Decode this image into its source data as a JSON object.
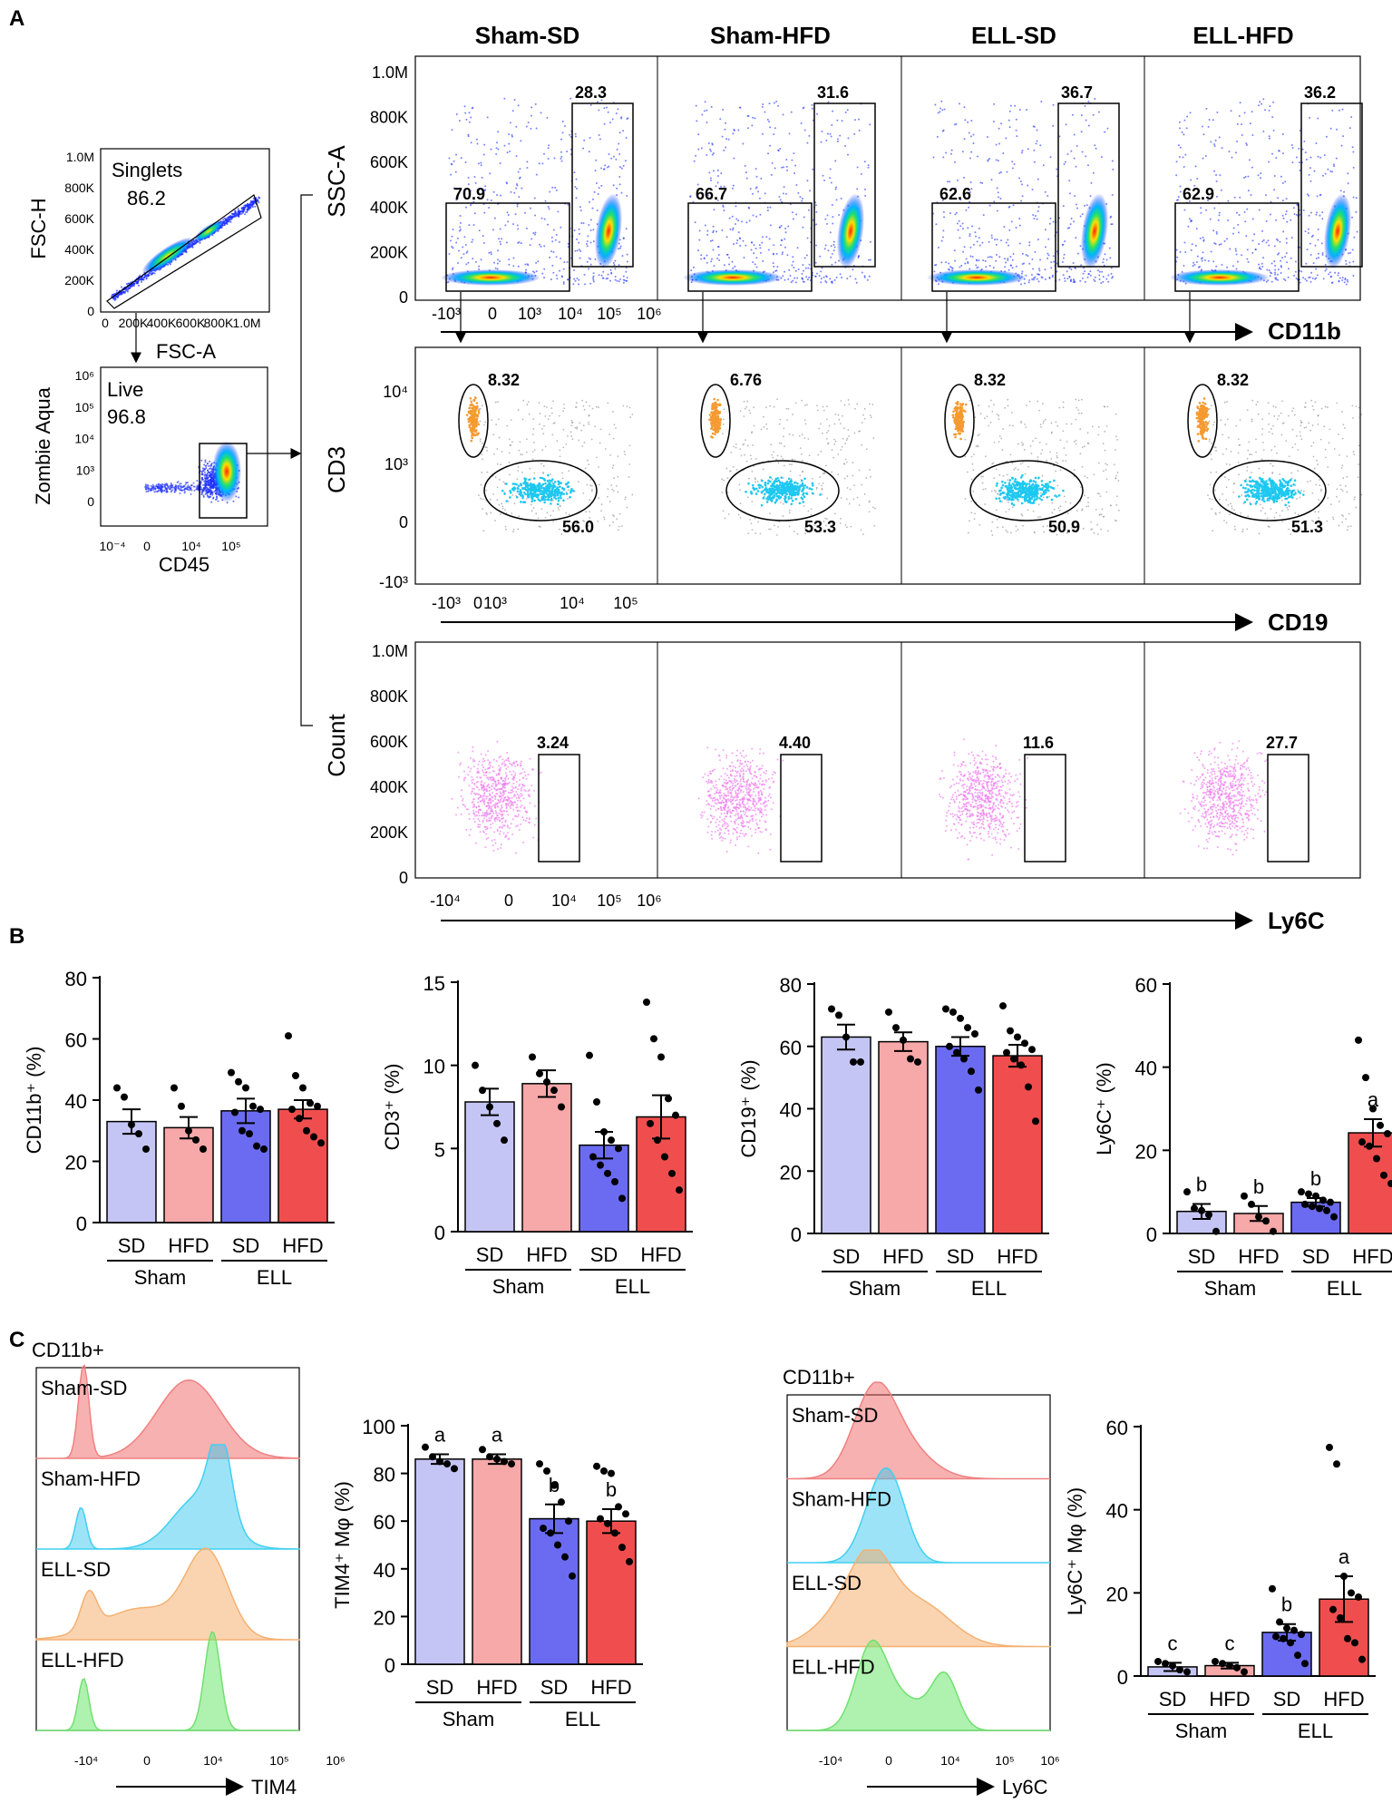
{
  "panels": {
    "A": "A",
    "B": "B",
    "C": "C"
  },
  "gating": {
    "singlets": {
      "name": "Singlets",
      "value": "86.2",
      "ylabel": "FSC-H",
      "xlabel": "FSC-A",
      "yticks": [
        "1.0M",
        "800K",
        "600K",
        "400K",
        "200K",
        "0"
      ],
      "xticks": [
        "0",
        "200K",
        "400K",
        "600K",
        "800K",
        "1.0M"
      ]
    },
    "live": {
      "name": "Live",
      "value": "96.8",
      "ylabel": "Zombie Aqua",
      "xlabel": "CD45",
      "yticks": [
        "10⁶",
        "10⁵",
        "10⁴",
        "10³",
        "0"
      ],
      "xticks": [
        "10⁻⁴",
        "0",
        "10⁴",
        "10⁵"
      ]
    }
  },
  "flow": {
    "groups": [
      "Sham-SD",
      "Sham-HFD",
      "ELL-SD",
      "ELL-HFD"
    ],
    "cd11b": {
      "ylabel": "SSC-A",
      "xlabel": "CD11b",
      "yticks": [
        "1.0M",
        "800K",
        "600K",
        "400K",
        "200K",
        "0"
      ],
      "xticks": [
        "-10³",
        "0",
        "10³",
        "10⁴",
        "10⁵",
        "10⁶"
      ],
      "neg": [
        "70.9",
        "66.7",
        "62.6",
        "62.9"
      ],
      "pos": [
        "28.3",
        "31.6",
        "36.7",
        "36.2"
      ]
    },
    "cd19": {
      "ylabel": "CD3",
      "xlabel": "CD19",
      "yticks": [
        "10⁴",
        "10³",
        "0",
        "-10³"
      ],
      "xticks": [
        "-10³",
        "0",
        "10³",
        "10⁴",
        "10⁵"
      ],
      "cd3": [
        "8.32",
        "6.76",
        "8.32",
        "8.32"
      ],
      "cd19": [
        "56.0",
        "53.3",
        "50.9",
        "51.3"
      ]
    },
    "ly6c": {
      "ylabel": "Count",
      "xlabel": "Ly6C",
      "yticks": [
        "1.0M",
        "800K",
        "600K",
        "400K",
        "200K",
        "0"
      ],
      "xticks": [
        "-10⁴",
        "0",
        "10⁴",
        "10⁵",
        "10⁶"
      ],
      "values": [
        "3.24",
        "4.40",
        "11.6",
        "27.7"
      ]
    }
  },
  "bar_labels": {
    "sd": "SD",
    "hfd": "HFD",
    "sham": "Sham",
    "ell": "ELL"
  },
  "colors": {
    "sham_sd": "#c5c5f5",
    "sham_hfd": "#f7a8a8",
    "ell_sd": "#6b6bf2",
    "ell_hfd": "#f04e4e"
  },
  "chart_data": [
    {
      "type": "bar",
      "id": "cd11b",
      "ylabel": "CD11b⁺ (%)",
      "ylim": [
        0,
        80
      ],
      "yticks": [
        "0",
        "20",
        "40",
        "60",
        "80"
      ],
      "categories": [
        "Sham SD",
        "Sham HFD",
        "ELL SD",
        "ELL HFD"
      ],
      "values": [
        33,
        31,
        36.5,
        37
      ],
      "sem": [
        4,
        3.5,
        4,
        3
      ],
      "points": [
        [
          44,
          41,
          32,
          29,
          24
        ],
        [
          44,
          38,
          30,
          27,
          24
        ],
        [
          49,
          46,
          44,
          38,
          37,
          36,
          30,
          29,
          25,
          24
        ],
        [
          61,
          48,
          44,
          39,
          38,
          37,
          34,
          30,
          28,
          26
        ]
      ],
      "letters": [
        "",
        "",
        "",
        ""
      ]
    },
    {
      "type": "bar",
      "id": "cd3",
      "ylabel": "CD3⁺ (%)",
      "ylim": [
        0,
        15
      ],
      "yticks": [
        "0",
        "5",
        "10",
        "15"
      ],
      "categories": [
        "Sham SD",
        "Sham HFD",
        "ELL SD",
        "ELL HFD"
      ],
      "values": [
        7.8,
        8.9,
        5.2,
        6.9
      ],
      "sem": [
        0.8,
        0.8,
        0.8,
        1.3
      ],
      "points": [
        [
          10,
          8.5,
          7.5,
          6.5,
          5.5
        ],
        [
          10.5,
          9.5,
          9,
          8.5,
          7.5
        ],
        [
          10.6,
          7.8,
          6,
          5.5,
          5,
          4.5,
          4,
          3.5,
          3,
          2
        ],
        [
          13.8,
          11.6,
          10.5,
          8,
          7,
          6.5,
          5.5,
          4.5,
          3.5,
          2.5
        ]
      ],
      "letters": [
        "",
        "",
        "",
        ""
      ]
    },
    {
      "type": "bar",
      "id": "cd19",
      "ylabel": "CD19⁺ (%)",
      "ylim": [
        0,
        80
      ],
      "yticks": [
        "0",
        "20",
        "40",
        "60",
        "80"
      ],
      "categories": [
        "Sham SD",
        "Sham HFD",
        "ELL SD",
        "ELL HFD"
      ],
      "values": [
        63,
        61.5,
        60,
        57
      ],
      "sem": [
        4,
        3,
        3,
        3.5
      ],
      "points": [
        [
          72,
          70,
          63,
          55,
          55
        ],
        [
          71,
          66,
          62,
          56,
          55
        ],
        [
          72,
          71,
          69,
          66,
          64,
          60,
          58,
          56,
          52,
          46
        ],
        [
          73,
          65,
          63,
          61,
          59,
          58,
          56,
          54,
          47,
          36
        ]
      ],
      "letters": [
        "",
        "",
        "",
        ""
      ]
    },
    {
      "type": "bar",
      "id": "ly6c",
      "ylabel": "Ly6C⁺ (%)",
      "ylim": [
        0,
        60
      ],
      "yticks": [
        "0",
        "20",
        "40",
        "60"
      ],
      "categories": [
        "Sham SD",
        "Sham HFD",
        "ELL SD",
        "ELL HFD"
      ],
      "values": [
        5.3,
        4.8,
        7.5,
        24.2
      ],
      "sem": [
        1.8,
        1.8,
        1,
        3.3
      ],
      "points": [
        [
          10,
          6,
          5.5,
          4.5,
          0.5
        ],
        [
          9,
          7,
          4,
          3,
          0.5
        ],
        [
          10,
          9.5,
          9,
          8,
          7.5,
          7,
          6.5,
          6,
          5.5,
          4
        ],
        [
          46.5,
          37.5,
          30,
          26,
          24,
          22,
          21,
          18,
          14,
          12
        ]
      ],
      "letters": [
        "b",
        "b",
        "b",
        "a"
      ]
    },
    {
      "type": "bar",
      "id": "tim4",
      "ylabel": "TIM4⁺ Mφ (%)",
      "ylim": [
        0,
        100
      ],
      "yticks": [
        "0",
        "20",
        "40",
        "60",
        "80",
        "100"
      ],
      "categories": [
        "Sham SD",
        "Sham HFD",
        "ELL SD",
        "ELL HFD"
      ],
      "values": [
        86,
        86,
        61,
        60
      ],
      "sem": [
        2,
        2,
        6,
        5
      ],
      "points": [
        [
          91,
          87,
          85,
          84,
          82
        ],
        [
          90,
          87,
          86,
          85,
          84
        ],
        [
          84,
          81,
          75,
          68,
          60,
          57,
          55,
          50,
          45,
          37
        ],
        [
          83,
          81,
          80,
          66,
          63,
          61,
          59,
          55,
          49,
          43
        ]
      ],
      "letters": [
        "a",
        "a",
        "b",
        "b"
      ]
    },
    {
      "type": "bar",
      "id": "ly6c_mphi",
      "ylabel": "Ly6C⁺ Mφ (%)",
      "ylim": [
        0,
        60
      ],
      "yticks": [
        "0",
        "20",
        "40",
        "60"
      ],
      "categories": [
        "Sham SD",
        "Sham HFD",
        "ELL SD",
        "ELL HFD"
      ],
      "values": [
        2.2,
        2.5,
        10.5,
        18.5
      ],
      "sem": [
        1,
        0.7,
        2,
        5.5
      ],
      "points": [
        [
          3.5,
          3,
          2.5,
          1.5,
          1
        ],
        [
          3.5,
          3,
          2.5,
          2,
          1
        ],
        [
          21,
          13,
          11.5,
          11,
          10,
          9.5,
          9,
          8,
          5,
          3
        ],
        [
          55,
          51,
          24,
          20,
          19,
          16,
          14,
          9,
          8,
          4
        ]
      ],
      "letters": [
        "c",
        "c",
        "b",
        "a"
      ]
    }
  ],
  "histograms": {
    "tim4": {
      "title": "CD11b+",
      "labels": [
        "Sham-SD",
        "Sham-HFD",
        "ELL-SD",
        "ELL-HFD"
      ],
      "xlabel": "TIM4",
      "xticks": [
        "-10⁴",
        "0",
        "10⁴",
        "10⁵",
        "10⁶"
      ]
    },
    "ly6c": {
      "title": "CD11b+",
      "labels": [
        "Sham-SD",
        "Sham-HFD",
        "ELL-SD",
        "ELL-HFD"
      ],
      "xlabel": "Ly6C",
      "xticks": [
        "-10⁴",
        "0",
        "10⁴",
        "10⁵",
        "10⁶"
      ]
    }
  }
}
